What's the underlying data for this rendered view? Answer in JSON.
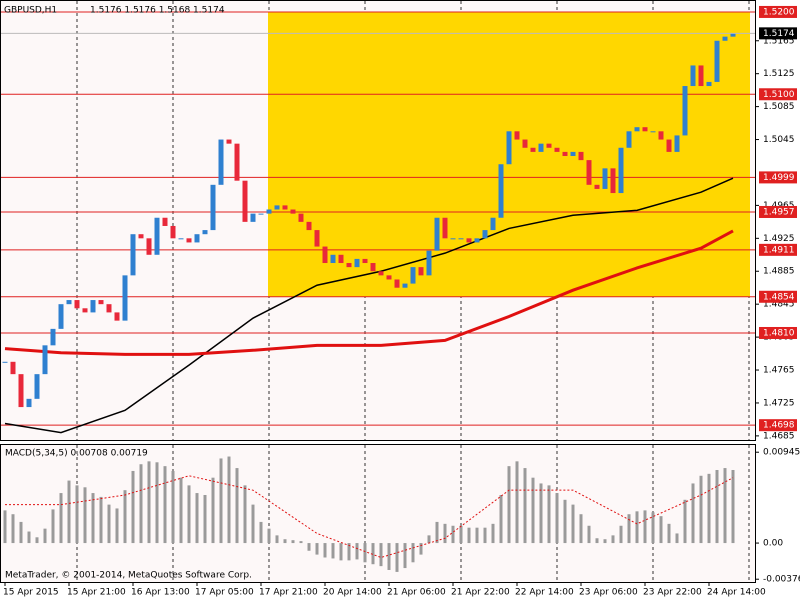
{
  "chart_data": [
    {
      "type": "candlestick",
      "title": "GBPUSD,H1",
      "subtitle": "1.5176 1.5176 1.5168 1.5174",
      "categories": [
        "15 Apr 2015",
        null,
        null,
        null,
        null,
        null,
        null,
        null,
        "15 Apr 21:00",
        null,
        null,
        null,
        null,
        null,
        null,
        null,
        "16 Apr 13:00",
        null,
        null,
        null,
        null,
        null,
        null,
        null,
        "17 Apr 05:00",
        null,
        null,
        null,
        null,
        null,
        null,
        null,
        "17 Apr 21:00",
        null,
        null,
        null,
        null,
        null,
        null,
        null,
        "20 Apr 14:00",
        null,
        null,
        null,
        null,
        null,
        null,
        null,
        "21 Apr 06:00",
        null,
        null,
        null,
        null,
        null,
        null,
        null,
        "21 Apr 22:00",
        null,
        null,
        null,
        null,
        null,
        null,
        null,
        "22 Apr 14:00",
        null,
        null,
        null,
        null,
        null,
        null,
        null,
        "23 Apr 06:00",
        null,
        null,
        null,
        null,
        null,
        null,
        null,
        "23 Apr 22:00",
        null,
        null,
        null,
        null,
        null,
        null,
        null,
        "24 Apr 14:00",
        null,
        null,
        null
      ],
      "values": [
        1.4775,
        1.476,
        1.472,
        1.473,
        1.476,
        1.4795,
        1.4815,
        1.4845,
        1.485,
        1.484,
        1.4835,
        1.485,
        1.4845,
        1.4835,
        1.4825,
        1.488,
        1.493,
        1.4925,
        1.4905,
        1.495,
        1.494,
        1.4925,
        1.4925,
        1.492,
        1.493,
        1.4935,
        1.499,
        1.5045,
        1.504,
        1.4995,
        1.4945,
        1.4955,
        1.4955,
        1.496,
        1.4965,
        1.496,
        1.4955,
        1.4945,
        1.4935,
        1.4915,
        1.4895,
        1.4905,
        1.4895,
        1.489,
        1.49,
        1.4895,
        1.4885,
        1.488,
        1.4875,
        1.4865,
        1.487,
        1.489,
        1.488,
        1.491,
        1.495,
        1.4925,
        1.4925,
        1.4925,
        1.492,
        1.4925,
        1.4935,
        1.495,
        1.5015,
        1.5055,
        1.5045,
        1.5035,
        1.503,
        1.504,
        1.5035,
        1.503,
        1.5025,
        1.503,
        1.502,
        1.499,
        1.4985,
        1.501,
        1.498,
        1.5035,
        1.5055,
        1.506,
        1.5055,
        1.5055,
        1.5045,
        1.503,
        1.505,
        1.511,
        1.5135,
        1.511,
        1.5115,
        1.5165,
        1.517,
        1.5174
      ],
      "up_color": "#2f80d0",
      "down_color": "#e8283a",
      "ylim": [
        1.468,
        1.52133
      ],
      "yticks": [
        1.5165,
        1.5125,
        1.5085,
        1.5045,
        1.4965,
        1.4925,
        1.4885,
        1.4845,
        1.4805,
        1.4765,
        1.4725,
        1.4685
      ],
      "levels": [
        {
          "value": 1.52,
          "label": "1.5200"
        },
        {
          "value": 1.51,
          "label": "1.5100"
        },
        {
          "value": 1.4999,
          "label": "1.4999"
        },
        {
          "value": 1.4957,
          "label": "1.4957"
        },
        {
          "value": 1.4911,
          "label": "1.4911"
        },
        {
          "value": 1.4854,
          "label": "1.4854"
        },
        {
          "value": 1.481,
          "label": "1.4810"
        },
        {
          "value": 1.4698,
          "label": "1.4698"
        }
      ],
      "level_color": "#e02020",
      "last_price": {
        "value": 1.5174,
        "label": "1.5174"
      },
      "zone": {
        "from": 1.52,
        "to": 1.4854,
        "color": "#ffd700"
      },
      "lines": [
        {
          "color": "#000000",
          "x": [
            0,
            7,
            15,
            23,
            31,
            39,
            47,
            55,
            63,
            71,
            79,
            87,
            91
          ],
          "values": [
            1.47,
            1.4689,
            1.4716,
            1.4771,
            1.4828,
            1.4868,
            1.4885,
            1.4907,
            1.4937,
            1.4953,
            1.4959,
            1.4981,
            1.4998
          ]
        },
        {
          "color": "#e01010",
          "x": [
            0,
            7,
            15,
            23,
            31,
            39,
            47,
            55,
            63,
            71,
            79,
            87,
            91
          ],
          "values": [
            1.4791,
            1.4786,
            1.4784,
            1.4784,
            1.4789,
            1.4795,
            1.4795,
            1.4801,
            1.483,
            1.4862,
            1.4889,
            1.4913,
            1.4934
          ]
        }
      ]
    },
    {
      "type": "macd",
      "title": "MACD(5,34,5) 0.00708 0.00719",
      "values": [
        0.0034,
        0.003,
        0.0022,
        0.0012,
        0.0006,
        0.0015,
        0.0035,
        0.0052,
        0.0065,
        0.006,
        0.0058,
        0.0052,
        0.0048,
        0.004,
        0.0036,
        0.0055,
        0.0075,
        0.0082,
        0.0085,
        0.0084,
        0.008,
        0.0075,
        0.0068,
        0.006,
        0.0052,
        0.005,
        0.0068,
        0.0088,
        0.009,
        0.0078,
        0.006,
        0.004,
        0.0022,
        0.0015,
        0.0008,
        0.0004,
        0.0003,
        0.0002,
        -0.0008,
        -0.0012,
        -0.0015,
        -0.0016,
        -0.0018,
        -0.0018,
        -0.0017,
        -0.002,
        -0.0022,
        -0.0024,
        -0.0028,
        -0.003,
        -0.0026,
        -0.002,
        -0.0012,
        0.0008,
        0.0022,
        0.002,
        0.0018,
        0.0018,
        0.0016,
        0.0016,
        0.0016,
        0.002,
        0.005,
        0.008,
        0.0085,
        0.0078,
        0.0068,
        0.0062,
        0.006,
        0.0052,
        0.0045,
        0.004,
        0.003,
        0.0018,
        0.0005,
        0.0004,
        0.0008,
        0.0018,
        0.003,
        0.0033,
        0.0034,
        0.0032,
        0.0028,
        0.002,
        0.001,
        0.0045,
        0.0062,
        0.007,
        0.0072,
        0.0076,
        0.0078,
        0.0076
      ],
      "color": "#9a9a9a",
      "signal": {
        "color": "#e01010",
        "x": [
          0,
          7,
          15,
          23,
          31,
          39,
          47,
          55,
          63,
          71,
          79,
          87,
          91
        ],
        "values": [
          0.004,
          0.004,
          0.005,
          0.007,
          0.0055,
          0.001,
          -0.0015,
          0.0005,
          0.0055,
          0.0055,
          0.002,
          0.005,
          0.0068
        ]
      },
      "ylim": [
        -0.00405,
        0.0102
      ],
      "yticks": [
        0.00945,
        {
          "value": 0,
          "label": "0.00"
        },
        -0.00376
      ]
    }
  ],
  "footer": "MetaTrader, © 2001-2014, MetaQuotes Software Corp."
}
